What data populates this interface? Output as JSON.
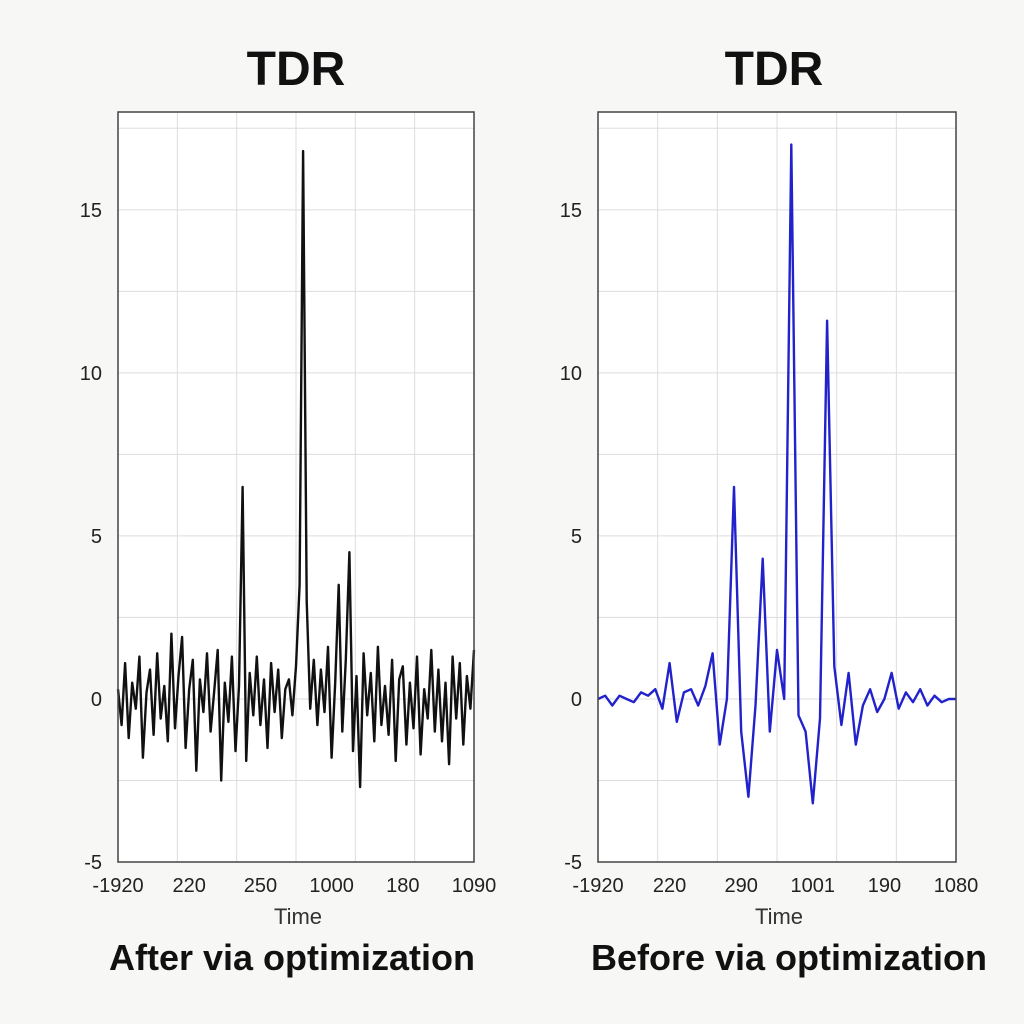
{
  "chart_data": [
    {
      "type": "line",
      "title": "TDR",
      "caption": "After via optimization",
      "xlabel": "Time",
      "ylabel": "",
      "xtick_labels": [
        "-1920",
        "220",
        "250",
        "1000",
        "180",
        "1090"
      ],
      "ytick_labels": [
        "15",
        "10",
        "5",
        "0",
        "-5"
      ],
      "ytick_values": [
        15,
        10,
        5,
        0,
        -5
      ],
      "ylim": [
        -5,
        18
      ],
      "xlim": [
        0,
        100
      ],
      "grid": true,
      "series": [
        {
          "color": "#111111",
          "x": [
            0,
            1,
            2,
            3,
            4,
            5,
            6,
            7,
            8,
            9,
            10,
            11,
            12,
            13,
            14,
            15,
            16,
            17,
            18,
            19,
            20,
            21,
            22,
            23,
            24,
            25,
            26,
            27,
            28,
            29,
            30,
            31,
            32,
            33,
            34,
            35,
            36,
            37,
            38,
            39,
            40,
            41,
            42,
            43,
            44,
            45,
            46,
            47,
            48,
            49,
            50,
            51,
            52,
            53,
            54,
            55,
            56,
            57,
            58,
            59,
            60,
            61,
            62,
            63,
            64,
            65,
            66,
            67,
            68,
            69,
            70,
            71,
            72,
            73,
            74,
            75,
            76,
            77,
            78,
            79,
            80,
            81,
            82,
            83,
            84,
            85,
            86,
            87,
            88,
            89,
            90,
            91,
            92,
            93,
            94,
            95,
            96,
            97,
            98,
            99,
            100
          ],
          "y": [
            0.3,
            -0.8,
            1.1,
            -1.2,
            0.5,
            -0.3,
            1.3,
            -1.8,
            0.2,
            0.9,
            -1.1,
            1.4,
            -0.6,
            0.4,
            -1.3,
            2.0,
            -0.9,
            0.7,
            1.9,
            -1.5,
            0.3,
            1.2,
            -2.2,
            0.6,
            -0.4,
            1.4,
            -1.0,
            0.2,
            1.5,
            -2.5,
            0.5,
            -0.7,
            1.3,
            -1.6,
            0.4,
            6.5,
            -1.9,
            0.8,
            -0.5,
            1.3,
            -0.8,
            0.6,
            -1.5,
            1.1,
            -0.4,
            0.9,
            -1.2,
            0.3,
            0.6,
            -0.5,
            1.0,
            3.5,
            16.8,
            3.0,
            -0.3,
            1.2,
            -0.8,
            0.9,
            -0.4,
            1.6,
            -1.8,
            0.5,
            3.5,
            -1.0,
            1.2,
            4.5,
            -1.6,
            0.7,
            -2.7,
            1.4,
            -0.5,
            0.8,
            -1.3,
            1.6,
            -0.8,
            0.4,
            -1.1,
            1.2,
            -1.9,
            0.6,
            1.0,
            -1.4,
            0.5,
            -0.9,
            1.3,
            -1.7,
            0.3,
            -0.6,
            1.5,
            -1.0,
            0.9,
            -1.3,
            0.5,
            -2.0,
            1.3,
            -0.6,
            1.1,
            -1.4,
            0.7,
            -0.3,
            1.5
          ]
        }
      ]
    },
    {
      "type": "line",
      "title": "TDR",
      "caption": "Before via optimization",
      "xlabel": "Time",
      "ylabel": "",
      "xtick_labels": [
        "-1920",
        "220",
        "290",
        "1001",
        "190",
        "1080"
      ],
      "ytick_labels": [
        "15",
        "10",
        "5",
        "0",
        "-5"
      ],
      "ytick_values": [
        15,
        10,
        5,
        0,
        -5
      ],
      "ylim": [
        -5,
        18
      ],
      "xlim": [
        0,
        100
      ],
      "grid": true,
      "series": [
        {
          "color": "#2222cc",
          "x": [
            0,
            2,
            4,
            6,
            8,
            10,
            12,
            14,
            16,
            18,
            20,
            22,
            24,
            26,
            28,
            30,
            32,
            34,
            36,
            38,
            40,
            42,
            44,
            46,
            48,
            50,
            52,
            54,
            56,
            58,
            60,
            62,
            64,
            66,
            68,
            70,
            72,
            74,
            76,
            78,
            80,
            82,
            84,
            86,
            88,
            90,
            92,
            94,
            96,
            98,
            100
          ],
          "y": [
            0.0,
            0.1,
            -0.2,
            0.1,
            0.0,
            -0.1,
            0.2,
            0.1,
            0.3,
            -0.3,
            1.1,
            -0.7,
            0.2,
            0.3,
            -0.2,
            0.4,
            1.4,
            -1.4,
            0.0,
            6.5,
            -1.0,
            -3.0,
            -0.2,
            4.3,
            -1.0,
            1.5,
            0.0,
            17.0,
            -0.5,
            -1.0,
            -3.2,
            -0.6,
            11.6,
            1.0,
            -0.8,
            0.8,
            -1.4,
            -0.2,
            0.3,
            -0.4,
            0.0,
            0.8,
            -0.3,
            0.2,
            -0.1,
            0.3,
            -0.2,
            0.1,
            -0.1,
            0.0,
            0.0
          ]
        }
      ]
    }
  ]
}
